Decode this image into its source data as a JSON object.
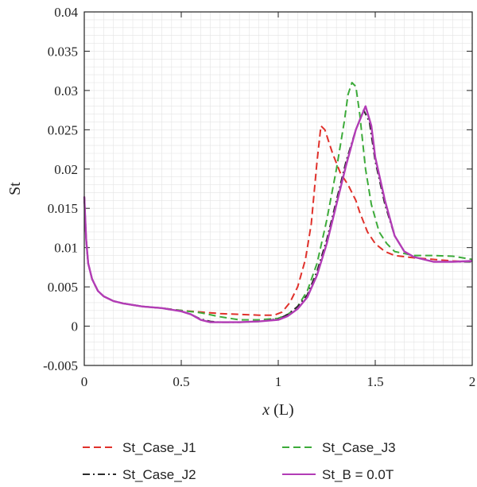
{
  "chart_data": {
    "type": "line",
    "ylabel": "St",
    "xlabel_main": "x",
    "xlabel_unit": " (L)",
    "xlim": [
      0,
      2
    ],
    "ylim": [
      -0.005,
      0.04
    ],
    "xticks": [
      0,
      0.5,
      1,
      1.5,
      2
    ],
    "xtick_labels": [
      "0",
      "0.5",
      "1",
      "1.5",
      "2"
    ],
    "yticks": [
      -0.005,
      0,
      0.005,
      0.01,
      0.015,
      0.02,
      0.025,
      0.03,
      0.035,
      0.04
    ],
    "ytick_labels": [
      "-0.005",
      "0",
      "0.005",
      "0.01",
      "0.015",
      "0.02",
      "0.025",
      "0.03",
      "0.035",
      "0.04"
    ],
    "grid": true,
    "legend_position": "bottom",
    "series": [
      {
        "name": "St_Case_J1",
        "color": "#e0312b",
        "dash": "dashed",
        "points": [
          [
            0,
            0.0165
          ],
          [
            0.01,
            0.011
          ],
          [
            0.02,
            0.008
          ],
          [
            0.04,
            0.006
          ],
          [
            0.07,
            0.0045
          ],
          [
            0.1,
            0.0038
          ],
          [
            0.15,
            0.0032
          ],
          [
            0.2,
            0.0029
          ],
          [
            0.3,
            0.0025
          ],
          [
            0.4,
            0.0023
          ],
          [
            0.5,
            0.002
          ],
          [
            0.6,
            0.0018
          ],
          [
            0.7,
            0.0016
          ],
          [
            0.8,
            0.0015
          ],
          [
            0.9,
            0.0014
          ],
          [
            0.98,
            0.0014
          ],
          [
            1.02,
            0.0018
          ],
          [
            1.06,
            0.003
          ],
          [
            1.1,
            0.005
          ],
          [
            1.14,
            0.0085
          ],
          [
            1.17,
            0.013
          ],
          [
            1.2,
            0.021
          ],
          [
            1.22,
            0.0255
          ],
          [
            1.24,
            0.025
          ],
          [
            1.28,
            0.022
          ],
          [
            1.32,
            0.0195
          ],
          [
            1.36,
            0.018
          ],
          [
            1.4,
            0.016
          ],
          [
            1.42,
            0.0145
          ],
          [
            1.46,
            0.012
          ],
          [
            1.5,
            0.0105
          ],
          [
            1.55,
            0.0095
          ],
          [
            1.6,
            0.009
          ],
          [
            1.7,
            0.0087
          ],
          [
            1.8,
            0.0085
          ],
          [
            1.9,
            0.0083
          ],
          [
            2.0,
            0.0082
          ]
        ]
      },
      {
        "name": "St_Case_J2",
        "color": "#2b2b2b",
        "dash": "dashdot",
        "points": [
          [
            0,
            0.0165
          ],
          [
            0.01,
            0.011
          ],
          [
            0.02,
            0.008
          ],
          [
            0.04,
            0.006
          ],
          [
            0.07,
            0.0045
          ],
          [
            0.1,
            0.0038
          ],
          [
            0.15,
            0.0032
          ],
          [
            0.2,
            0.0029
          ],
          [
            0.3,
            0.0025
          ],
          [
            0.4,
            0.0023
          ],
          [
            0.5,
            0.0019
          ],
          [
            0.55,
            0.0015
          ],
          [
            0.6,
            0.0009
          ],
          [
            0.65,
            0.0006
          ],
          [
            0.7,
            0.0005
          ],
          [
            0.8,
            0.0005
          ],
          [
            0.9,
            0.0006
          ],
          [
            1.0,
            0.0009
          ],
          [
            1.05,
            0.0015
          ],
          [
            1.1,
            0.0025
          ],
          [
            1.15,
            0.004
          ],
          [
            1.2,
            0.007
          ],
          [
            1.25,
            0.011
          ],
          [
            1.3,
            0.016
          ],
          [
            1.35,
            0.021
          ],
          [
            1.4,
            0.025
          ],
          [
            1.44,
            0.0275
          ],
          [
            1.47,
            0.026
          ],
          [
            1.5,
            0.021
          ],
          [
            1.55,
            0.0155
          ],
          [
            1.6,
            0.0115
          ],
          [
            1.65,
            0.0095
          ],
          [
            1.7,
            0.0088
          ],
          [
            1.8,
            0.0082
          ],
          [
            1.9,
            0.0082
          ],
          [
            2.0,
            0.0082
          ]
        ]
      },
      {
        "name": "St_Case_J3",
        "color": "#3dab3a",
        "dash": "dashed",
        "points": [
          [
            0,
            0.0165
          ],
          [
            0.01,
            0.011
          ],
          [
            0.02,
            0.008
          ],
          [
            0.04,
            0.006
          ],
          [
            0.07,
            0.0045
          ],
          [
            0.1,
            0.0038
          ],
          [
            0.15,
            0.0032
          ],
          [
            0.2,
            0.0029
          ],
          [
            0.3,
            0.0025
          ],
          [
            0.4,
            0.0023
          ],
          [
            0.5,
            0.002
          ],
          [
            0.6,
            0.0017
          ],
          [
            0.7,
            0.0012
          ],
          [
            0.8,
            0.0008
          ],
          [
            0.9,
            0.0008
          ],
          [
            1.0,
            0.001
          ],
          [
            1.05,
            0.0015
          ],
          [
            1.1,
            0.0025
          ],
          [
            1.15,
            0.0045
          ],
          [
            1.2,
            0.008
          ],
          [
            1.25,
            0.0135
          ],
          [
            1.3,
            0.02
          ],
          [
            1.34,
            0.026
          ],
          [
            1.36,
            0.0295
          ],
          [
            1.38,
            0.031
          ],
          [
            1.4,
            0.0305
          ],
          [
            1.42,
            0.027
          ],
          [
            1.45,
            0.02
          ],
          [
            1.48,
            0.0155
          ],
          [
            1.52,
            0.012
          ],
          [
            1.56,
            0.0105
          ],
          [
            1.6,
            0.0095
          ],
          [
            1.7,
            0.009
          ],
          [
            1.8,
            0.009
          ],
          [
            1.9,
            0.0089
          ],
          [
            2.0,
            0.0085
          ]
        ]
      },
      {
        "name": "St_B = 0.0T",
        "color": "#b23cb6",
        "dash": "solid",
        "points": [
          [
            0,
            0.0165
          ],
          [
            0.01,
            0.011
          ],
          [
            0.02,
            0.008
          ],
          [
            0.04,
            0.006
          ],
          [
            0.07,
            0.0045
          ],
          [
            0.1,
            0.0038
          ],
          [
            0.15,
            0.0032
          ],
          [
            0.2,
            0.0029
          ],
          [
            0.3,
            0.0025
          ],
          [
            0.4,
            0.0023
          ],
          [
            0.5,
            0.0019
          ],
          [
            0.55,
            0.0015
          ],
          [
            0.6,
            0.0008
          ],
          [
            0.65,
            0.0005
          ],
          [
            0.7,
            0.0005
          ],
          [
            0.8,
            0.0005
          ],
          [
            0.9,
            0.0006
          ],
          [
            1.0,
            0.0008
          ],
          [
            1.05,
            0.0013
          ],
          [
            1.1,
            0.0022
          ],
          [
            1.15,
            0.0037
          ],
          [
            1.2,
            0.0065
          ],
          [
            1.25,
            0.0105
          ],
          [
            1.3,
            0.0155
          ],
          [
            1.35,
            0.0205
          ],
          [
            1.4,
            0.025
          ],
          [
            1.45,
            0.028
          ],
          [
            1.48,
            0.0255
          ],
          [
            1.5,
            0.0215
          ],
          [
            1.55,
            0.016
          ],
          [
            1.6,
            0.0115
          ],
          [
            1.65,
            0.0095
          ],
          [
            1.7,
            0.0088
          ],
          [
            1.8,
            0.0082
          ],
          [
            1.9,
            0.0082
          ],
          [
            2.0,
            0.0083
          ]
        ]
      }
    ]
  }
}
